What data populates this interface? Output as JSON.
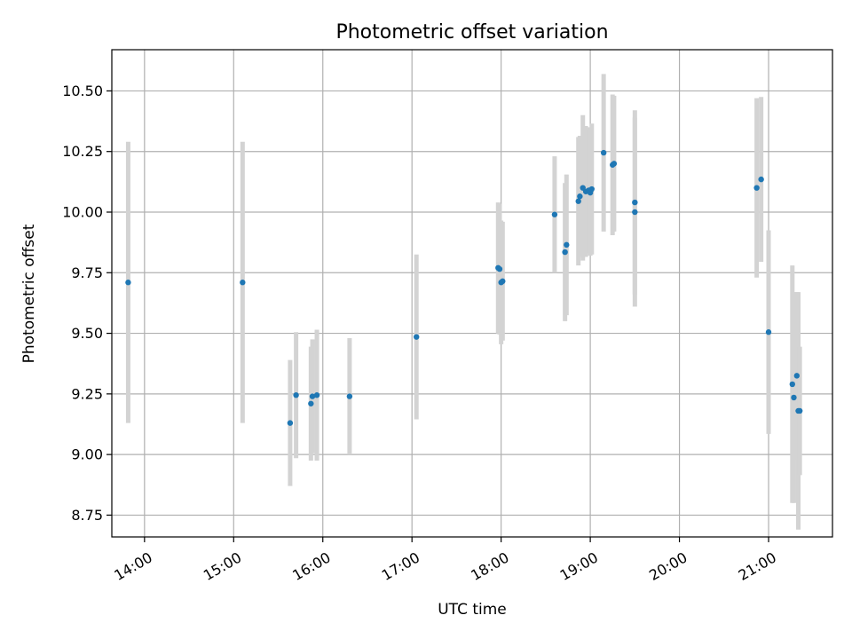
{
  "chart_data": {
    "type": "scatter",
    "title": "Photometric offset variation",
    "xlabel": "UTC time",
    "ylabel": "Photometric offset",
    "x_is_time": true,
    "xlim": [
      "13:38",
      "21:43"
    ],
    "ylim": [
      8.66,
      10.67
    ],
    "grid": true,
    "marker_color": "#1f77b4",
    "errorbar_color": "#d3d3d3",
    "x_ticks": [
      "14:00",
      "15:00",
      "16:00",
      "17:00",
      "18:00",
      "19:00",
      "20:00",
      "21:00"
    ],
    "y_ticks": [
      "8.75",
      "9.00",
      "9.25",
      "9.50",
      "9.75",
      "10.00",
      "10.25",
      "10.50"
    ],
    "y_tick_values": [
      8.75,
      9.0,
      9.25,
      9.5,
      9.75,
      10.0,
      10.25,
      10.5
    ],
    "points": [
      {
        "x": "13:49",
        "y": 9.71,
        "err": 0.58
      },
      {
        "x": "15:06",
        "y": 9.71,
        "err": 0.58
      },
      {
        "x": "15:38",
        "y": 9.13,
        "err": 0.26
      },
      {
        "x": "15:42",
        "y": 9.245,
        "err": 0.26
      },
      {
        "x": "15:52",
        "y": 9.21,
        "err": 0.235
      },
      {
        "x": "15:53",
        "y": 9.24,
        "err": 0.235
      },
      {
        "x": "15:56",
        "y": 9.245,
        "err": 0.27
      },
      {
        "x": "16:18",
        "y": 9.24,
        "err": 0.24
      },
      {
        "x": "17:03",
        "y": 9.485,
        "err": 0.34
      },
      {
        "x": "17:58",
        "y": 9.77,
        "err": 0.27
      },
      {
        "x": "17:59",
        "y": 9.765,
        "err": 0.27
      },
      {
        "x": "18:00",
        "y": 9.71,
        "err": 0.255
      },
      {
        "x": "18:01",
        "y": 9.715,
        "err": 0.245
      },
      {
        "x": "18:36",
        "y": 9.99,
        "err": 0.24
      },
      {
        "x": "18:43",
        "y": 9.835,
        "err": 0.285
      },
      {
        "x": "18:44",
        "y": 9.865,
        "err": 0.29
      },
      {
        "x": "18:52",
        "y": 10.045,
        "err": 0.265
      },
      {
        "x": "18:53",
        "y": 10.065,
        "err": 0.25
      },
      {
        "x": "18:55",
        "y": 10.1,
        "err": 0.3
      },
      {
        "x": "18:57",
        "y": 10.085,
        "err": 0.27
      },
      {
        "x": "18:59",
        "y": 10.09,
        "err": 0.26
      },
      {
        "x": "19:00",
        "y": 10.08,
        "err": 0.26
      },
      {
        "x": "19:01",
        "y": 10.095,
        "err": 0.27
      },
      {
        "x": "19:09",
        "y": 10.245,
        "err": 0.325
      },
      {
        "x": "19:15",
        "y": 10.195,
        "err": 0.29
      },
      {
        "x": "19:16",
        "y": 10.2,
        "err": 0.28
      },
      {
        "x": "19:30",
        "y": 10.0,
        "err": 0.39
      },
      {
        "x": "19:30",
        "y": 10.04,
        "err": 0.38
      },
      {
        "x": "20:52",
        "y": 10.1,
        "err": 0.37
      },
      {
        "x": "20:55",
        "y": 10.135,
        "err": 0.34
      },
      {
        "x": "21:00",
        "y": 9.505,
        "err": 0.42
      },
      {
        "x": "21:16",
        "y": 9.29,
        "err": 0.49
      },
      {
        "x": "21:17",
        "y": 9.235,
        "err": 0.435
      },
      {
        "x": "21:19",
        "y": 9.325,
        "err": 0.345
      },
      {
        "x": "21:20",
        "y": 9.18,
        "err": 0.49
      },
      {
        "x": "21:21",
        "y": 9.18,
        "err": 0.265
      }
    ]
  }
}
